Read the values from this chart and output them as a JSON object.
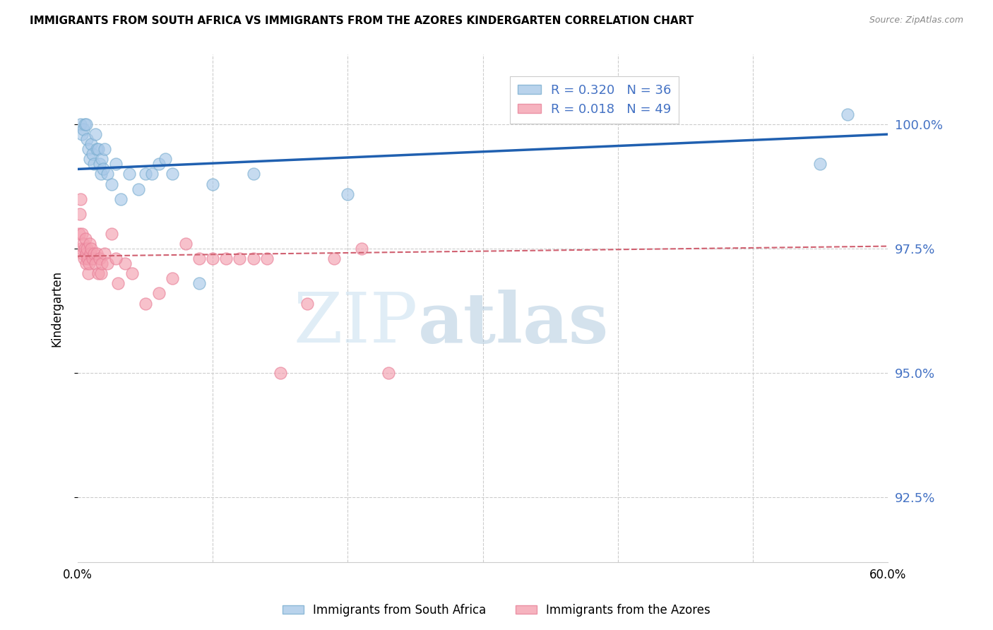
{
  "title": "IMMIGRANTS FROM SOUTH AFRICA VS IMMIGRANTS FROM THE AZORES KINDERGARTEN CORRELATION CHART",
  "source": "Source: ZipAtlas.com",
  "ylabel": "Kindergarten",
  "ytick_values": [
    92.5,
    95.0,
    97.5,
    100.0
  ],
  "xlim": [
    0.0,
    60.0
  ],
  "ylim": [
    91.2,
    101.4
  ],
  "legend_entry1": "R = 0.320   N = 36",
  "legend_entry2": "R = 0.018   N = 49",
  "legend_label1": "Immigrants from South Africa",
  "legend_label2": "Immigrants from the Azores",
  "blue_color": "#a8c8e8",
  "pink_color": "#f4a0b0",
  "blue_scatter_edge": "#7aaed0",
  "pink_scatter_edge": "#e88098",
  "blue_line_color": "#2060b0",
  "pink_line_color": "#d06070",
  "scatter_blue_x": [
    0.2,
    0.3,
    0.4,
    0.5,
    0.6,
    0.7,
    0.8,
    0.9,
    1.0,
    1.1,
    1.2,
    1.3,
    1.4,
    1.5,
    1.6,
    1.7,
    1.8,
    1.9,
    2.0,
    2.2,
    2.5,
    2.8,
    3.2,
    3.8,
    4.5,
    5.0,
    5.5,
    6.0,
    6.5,
    7.0,
    9.0,
    10.0,
    13.0,
    20.0,
    55.0,
    57.0
  ],
  "scatter_blue_y": [
    100.0,
    99.8,
    99.9,
    100.0,
    100.0,
    99.7,
    99.5,
    99.3,
    99.6,
    99.4,
    99.2,
    99.8,
    99.5,
    99.5,
    99.2,
    99.0,
    99.3,
    99.1,
    99.5,
    99.0,
    98.8,
    99.2,
    98.5,
    99.0,
    98.7,
    99.0,
    99.0,
    99.2,
    99.3,
    99.0,
    96.8,
    98.8,
    99.0,
    98.6,
    99.2,
    100.2
  ],
  "scatter_pink_x": [
    0.1,
    0.15,
    0.2,
    0.25,
    0.3,
    0.35,
    0.4,
    0.45,
    0.5,
    0.55,
    0.6,
    0.65,
    0.7,
    0.75,
    0.8,
    0.85,
    0.9,
    0.95,
    1.0,
    1.1,
    1.2,
    1.3,
    1.4,
    1.5,
    1.6,
    1.7,
    1.8,
    2.0,
    2.2,
    2.5,
    3.0,
    3.5,
    4.0,
    5.0,
    6.0,
    7.0,
    8.0,
    9.0,
    10.0,
    11.0,
    12.0,
    13.0,
    14.0,
    15.0,
    17.0,
    19.0,
    21.0,
    23.0,
    2.8
  ],
  "scatter_pink_y": [
    97.8,
    98.2,
    98.5,
    97.5,
    97.8,
    97.4,
    97.6,
    97.3,
    97.5,
    97.7,
    97.2,
    97.4,
    97.5,
    97.3,
    97.0,
    97.2,
    97.6,
    97.4,
    97.5,
    97.3,
    97.4,
    97.2,
    97.4,
    97.0,
    97.3,
    97.0,
    97.2,
    97.4,
    97.2,
    97.8,
    96.8,
    97.2,
    97.0,
    96.4,
    96.6,
    96.9,
    97.6,
    97.3,
    97.3,
    97.3,
    97.3,
    97.3,
    97.3,
    95.0,
    96.4,
    97.3,
    97.5,
    95.0,
    97.3
  ],
  "blue_trend_x": [
    0.0,
    60.0
  ],
  "blue_trend_y": [
    99.1,
    99.8
  ],
  "pink_trend_x": [
    0.0,
    60.0
  ],
  "pink_trend_y": [
    97.35,
    97.55
  ],
  "watermark_zip": "ZIP",
  "watermark_atlas": "atlas",
  "background_color": "#ffffff",
  "grid_color": "#cccccc",
  "tick_label_color": "#4472c4",
  "legend_text_color": "#4472c4"
}
